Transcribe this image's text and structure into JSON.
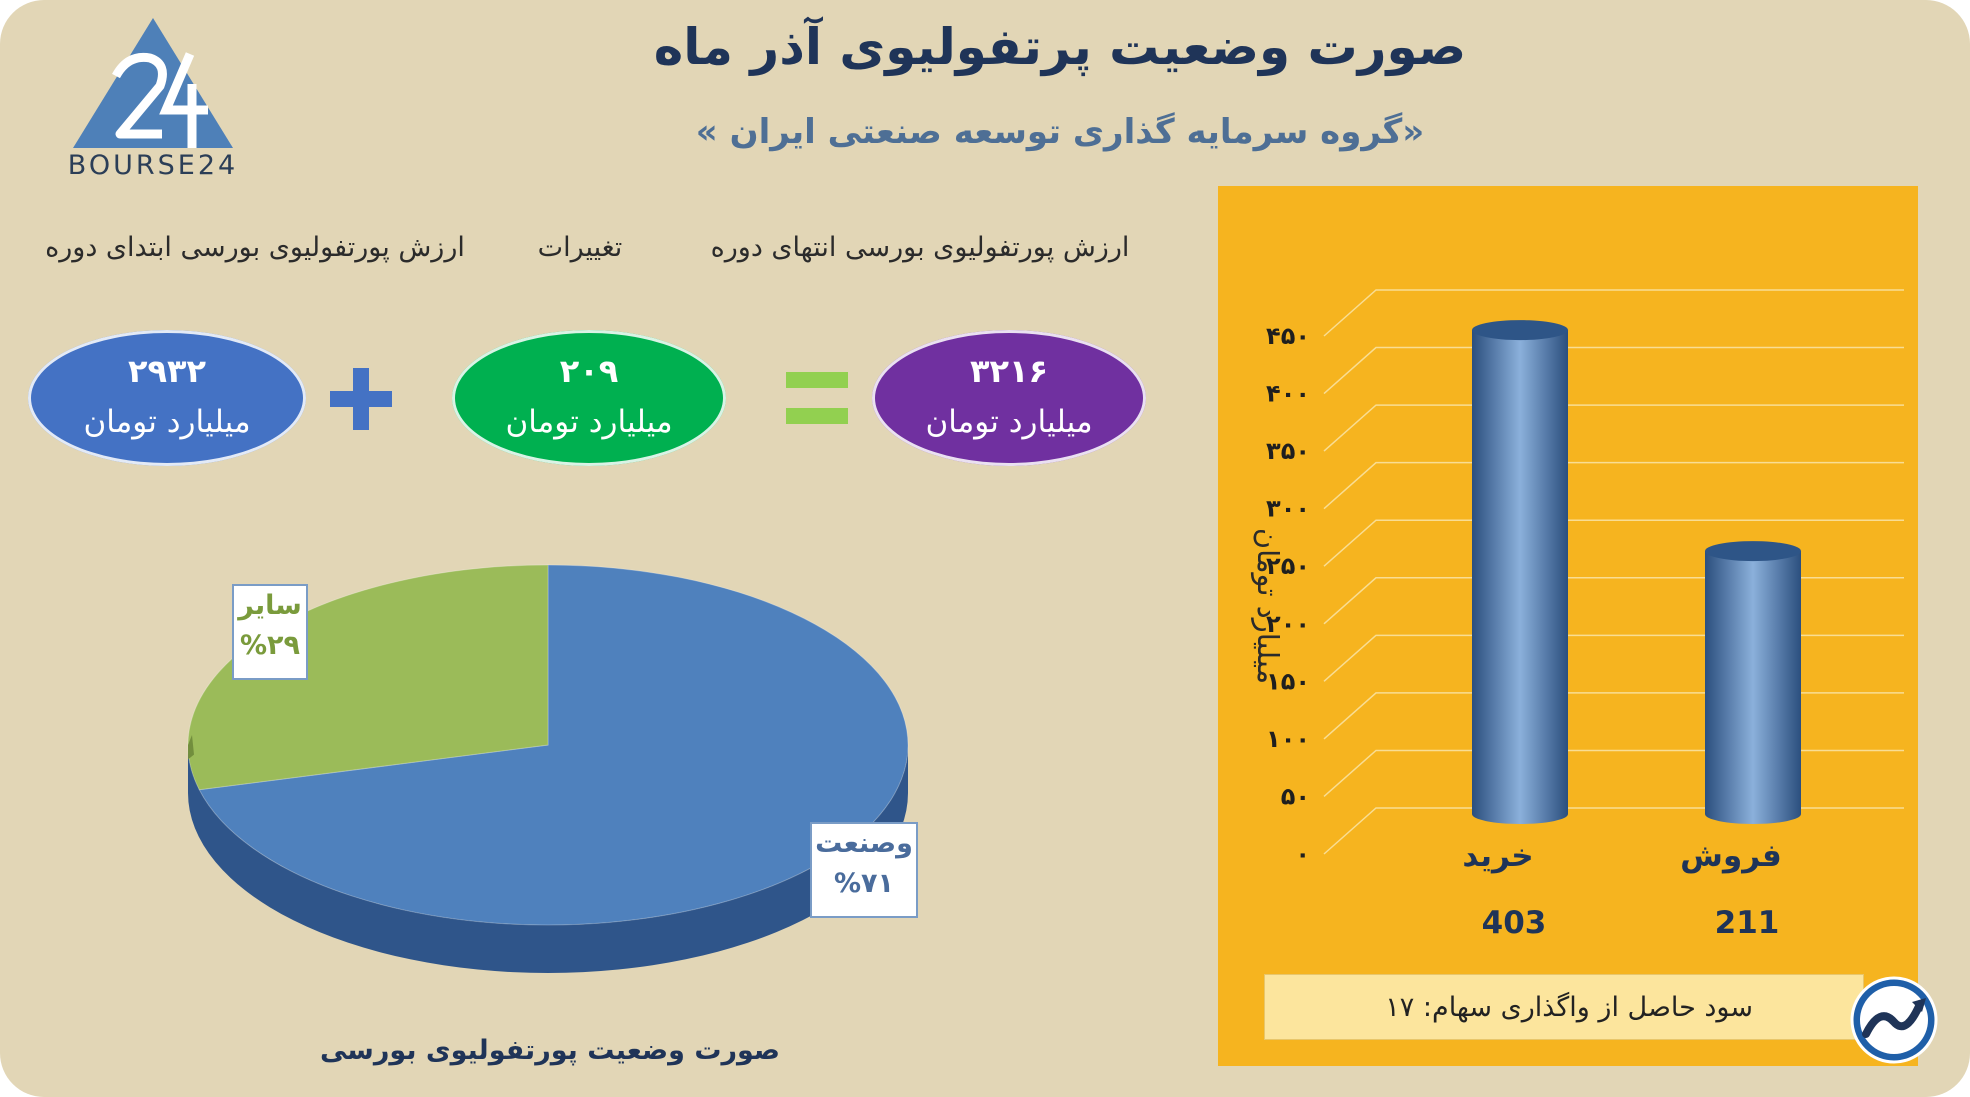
{
  "header": {
    "title": "صورت وضعیت پرتفولیوی آذر ماه",
    "subtitle": "«گروه سرمایه گذاری توسعه صنعتی ایران »"
  },
  "logo": {
    "text": "BOURSE24"
  },
  "equation": {
    "labels": {
      "start": "ارزش پورتفولیوی بورسی ابتدای دوره",
      "change": "تغییرات",
      "end": "ارزش پورتفولیوی بورسی انتهای دوره"
    },
    "start": {
      "value": "۲۹۳۲",
      "unit": "میلیارد تومان"
    },
    "change": {
      "value": "۲۰۹",
      "unit": "میلیارد تومان"
    },
    "end": {
      "value": "۳۲۱۶",
      "unit": "میلیارد تومان"
    }
  },
  "colors": {
    "background": "#e2d6b6",
    "title": "#1f3458",
    "ellipse_start": "#4472c4",
    "ellipse_change": "#00b050",
    "ellipse_end": "#7030a0",
    "pie_industry": "#4f81bd",
    "pie_other": "#9bbb59",
    "bar_panel": "#f6b41f",
    "bar": "#4a74a8"
  },
  "chart_data": [
    {
      "type": "pie",
      "title": "صورت وضعیت پورتفولیوی بورسی",
      "slices": [
        {
          "name": "وصنعت",
          "value": 71,
          "label": "%۷۱"
        },
        {
          "name": "سایر",
          "value": 29,
          "label": "%۲۹"
        }
      ]
    },
    {
      "type": "bar",
      "categories": [
        "خرید",
        "فروش"
      ],
      "values": [
        403,
        211
      ],
      "value_labels": [
        "403",
        "211"
      ],
      "ylabel": "میلیارد تومان",
      "ylim": [
        0,
        450
      ],
      "yticks": [
        {
          "value": 0,
          "label": "۰"
        },
        {
          "value": 50,
          "label": "۵۰"
        },
        {
          "value": 100,
          "label": "۱۰۰"
        },
        {
          "value": 150,
          "label": "۱۵۰"
        },
        {
          "value": 200,
          "label": "۲۰۰"
        },
        {
          "value": 250,
          "label": "۲۵۰"
        },
        {
          "value": 300,
          "label": "۳۰۰"
        },
        {
          "value": 350,
          "label": "۳۵۰"
        },
        {
          "value": 400,
          "label": "۴۰۰"
        },
        {
          "value": 450,
          "label": "۴۵۰"
        }
      ],
      "grid": true
    }
  ],
  "profit": {
    "text": "سود حاصل از واگذاری سهام: ۱۷"
  }
}
